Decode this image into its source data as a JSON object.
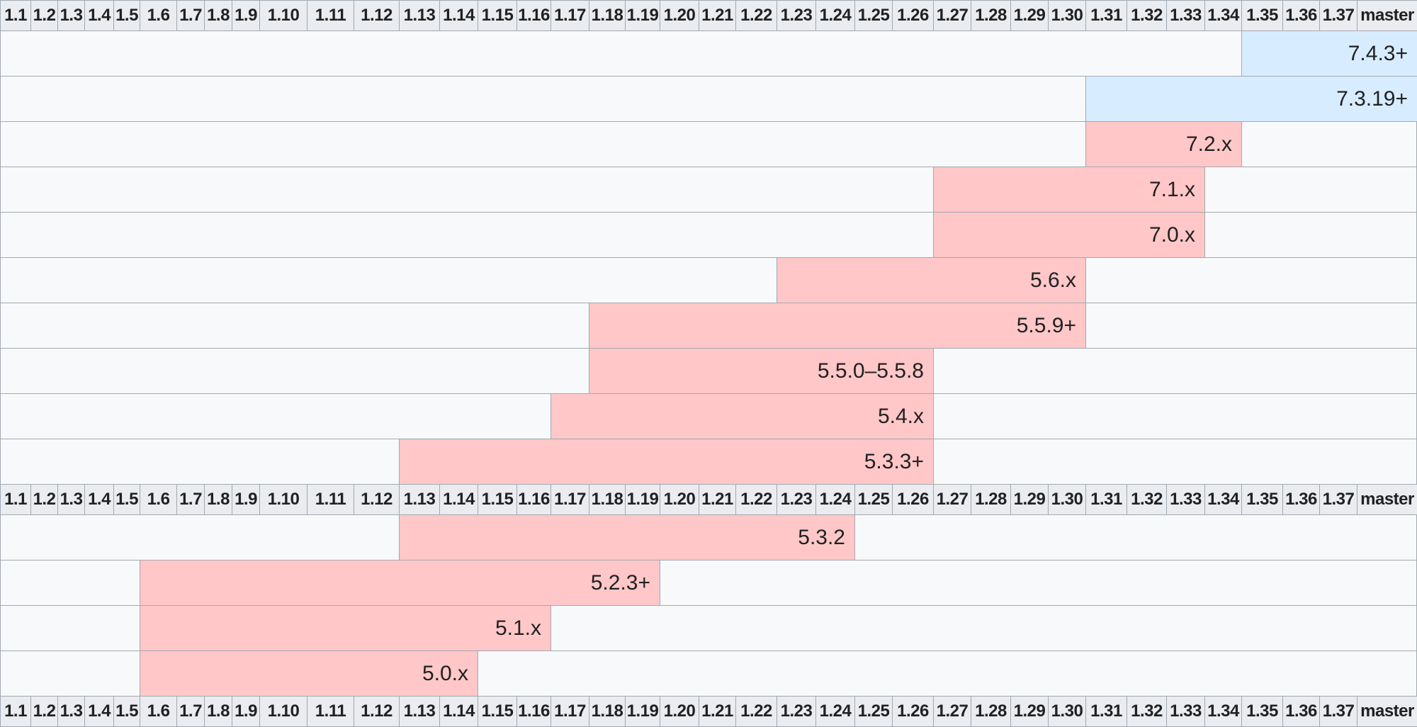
{
  "columns": [
    "1.1",
    "1.2",
    "1.3",
    "1.4",
    "1.5",
    "1.6",
    "1.7",
    "1.8",
    "1.9",
    "1.10",
    "1.11",
    "1.12",
    "1.13",
    "1.14",
    "1.15",
    "1.16",
    "1.17",
    "1.18",
    "1.19",
    "1.20",
    "1.21",
    "1.22",
    "1.23",
    "1.24",
    "1.25",
    "1.26",
    "1.27",
    "1.28",
    "1.29",
    "1.30",
    "1.31",
    "1.32",
    "1.33",
    "1.34",
    "1.35",
    "1.36",
    "1.37",
    "master"
  ],
  "colors": {
    "header_bg": "#eaecf0",
    "border": "#a2a9b1",
    "empty_bg": "#f8f9fa",
    "supported": "#d8ecff",
    "unsupported": "#ffc7c8"
  },
  "sections": [
    {
      "rows": [
        {
          "label": "7.4.3+",
          "from": "1.35",
          "to": "master",
          "status": "supported"
        },
        {
          "label": "7.3.19+",
          "from": "1.31",
          "to": "master",
          "status": "supported"
        },
        {
          "label": "7.2.x",
          "from": "1.31",
          "to": "1.34",
          "status": "unsupported"
        },
        {
          "label": "7.1.x",
          "from": "1.27",
          "to": "1.33",
          "status": "unsupported"
        },
        {
          "label": "7.0.x",
          "from": "1.27",
          "to": "1.33",
          "status": "unsupported"
        },
        {
          "label": "5.6.x",
          "from": "1.23",
          "to": "1.30",
          "status": "unsupported"
        },
        {
          "label": "5.5.9+",
          "from": "1.18",
          "to": "1.30",
          "status": "unsupported"
        },
        {
          "label": "5.5.0–5.5.8",
          "from": "1.18",
          "to": "1.26",
          "status": "unsupported"
        },
        {
          "label": "5.4.x",
          "from": "1.17",
          "to": "1.26",
          "status": "unsupported"
        },
        {
          "label": "5.3.3+",
          "from": "1.13",
          "to": "1.26",
          "status": "unsupported"
        }
      ]
    },
    {
      "rows": [
        {
          "label": "5.3.2",
          "from": "1.13",
          "to": "1.24",
          "status": "unsupported"
        },
        {
          "label": "5.2.3+",
          "from": "1.6",
          "to": "1.19",
          "status": "unsupported"
        },
        {
          "label": "5.1.x",
          "from": "1.6",
          "to": "1.16",
          "status": "unsupported"
        },
        {
          "label": "5.0.x",
          "from": "1.6",
          "to": "1.14",
          "status": "unsupported"
        }
      ]
    }
  ]
}
